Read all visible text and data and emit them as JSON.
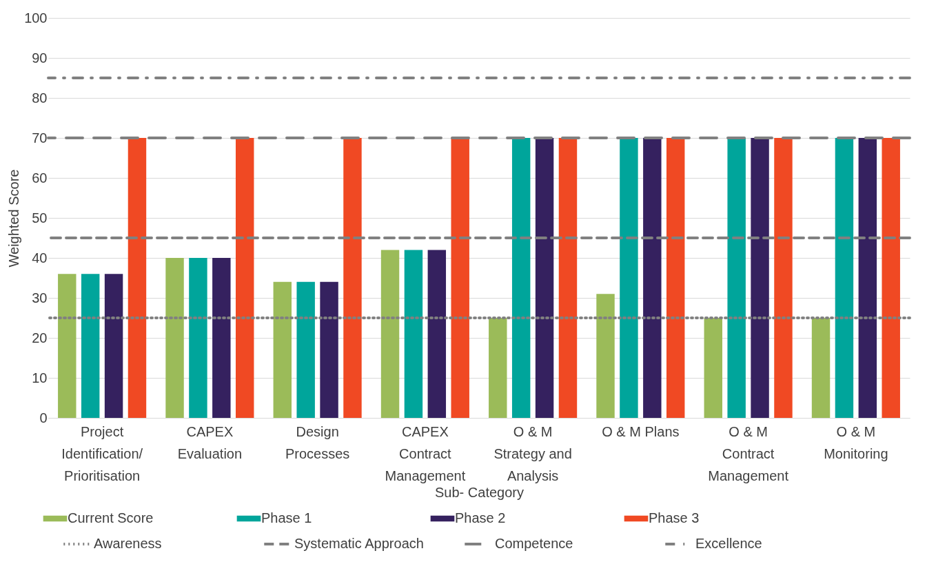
{
  "chart_data": {
    "type": "bar",
    "xlabel": "Sub- Category",
    "ylabel": "Weighted Score",
    "categories": [
      "Project Identification/ Prioritisation",
      "CAPEX Evaluation",
      "Design Processes",
      "CAPEX Contract Management",
      "O & M Strategy and Analysis",
      "O & M Plans",
      "O & M Contract Management",
      "O & M Monitoring"
    ],
    "series": [
      {
        "name": "Current Score",
        "color": "#9bbb59",
        "values": [
          36,
          40,
          34,
          42,
          25,
          31,
          25,
          25
        ]
      },
      {
        "name": "Phase 1",
        "color": "#00a59b",
        "values": [
          36,
          40,
          34,
          42,
          70,
          70,
          70,
          70
        ]
      },
      {
        "name": "Phase 2",
        "color": "#35215f",
        "values": [
          36,
          40,
          34,
          42,
          70,
          70,
          70,
          70
        ]
      },
      {
        "name": "Phase 3",
        "color": "#f04923",
        "values": [
          70,
          70,
          70,
          70,
          70,
          70,
          70,
          70
        ]
      }
    ],
    "ylim": [
      0,
      100
    ],
    "yticks": [
      0,
      10,
      20,
      30,
      40,
      50,
      60,
      70,
      80,
      90,
      100
    ],
    "grid": "y",
    "legend": "bottom",
    "ref_lines": [
      {
        "axis": "y",
        "value": 25,
        "label": "Awareness",
        "color": "#808080",
        "line_style": "dotted"
      },
      {
        "axis": "y",
        "value": 45,
        "label": "Systematic Approach",
        "color": "#808080",
        "line_style": "dashed"
      },
      {
        "axis": "y",
        "value": 70,
        "label": "Competence",
        "color": "#808080",
        "line_style": "dashed"
      },
      {
        "axis": "y",
        "value": 85,
        "label": "Excellence",
        "color": "#808080",
        "line_style": "dashdot"
      }
    ]
  }
}
